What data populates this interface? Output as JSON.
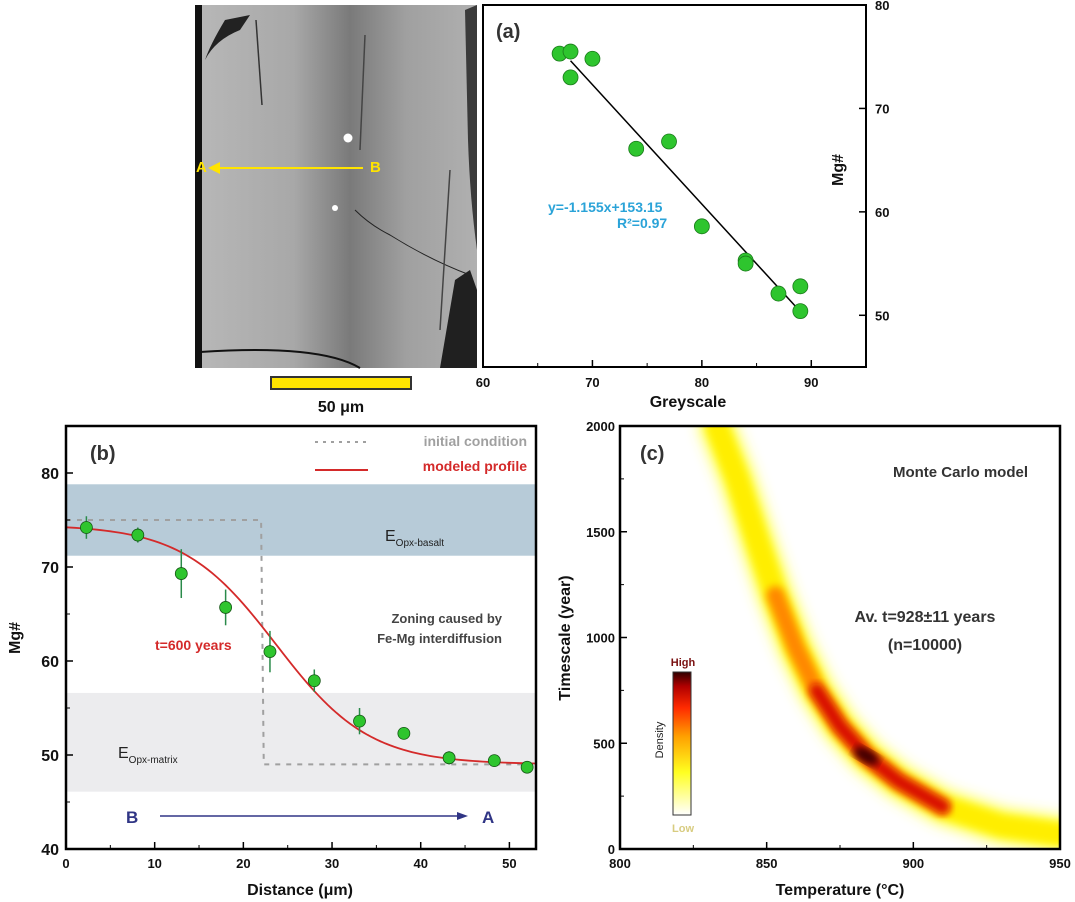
{
  "figure": {
    "bse_image": {
      "label_a": "A",
      "label_b": "B",
      "scale_bar_label": "50 μm",
      "arrow_color": "#ffe400"
    }
  },
  "chart_data": [
    {
      "id": "a",
      "type": "scatter",
      "panel_label": "(a)",
      "xlabel": "Greyscale",
      "ylabel": "Mg#",
      "xlim": [
        60,
        95
      ],
      "ylim": [
        45,
        80
      ],
      "x_ticks": [
        60,
        70,
        80,
        90
      ],
      "y_ticks": [
        50,
        60,
        70,
        80
      ],
      "y_axis_side": "right",
      "points": [
        {
          "x": 67,
          "y": 75.3
        },
        {
          "x": 68,
          "y": 75.5
        },
        {
          "x": 70,
          "y": 74.8
        },
        {
          "x": 68,
          "y": 73.0
        },
        {
          "x": 74,
          "y": 66.1
        },
        {
          "x": 77,
          "y": 66.8
        },
        {
          "x": 80,
          "y": 58.6
        },
        {
          "x": 84,
          "y": 55.3
        },
        {
          "x": 84,
          "y": 55.0
        },
        {
          "x": 87,
          "y": 52.1
        },
        {
          "x": 89,
          "y": 52.8
        },
        {
          "x": 89,
          "y": 50.4
        }
      ],
      "fit_line": {
        "x_range": [
          68,
          89
        ],
        "slope": -1.155,
        "intercept": 153.15
      },
      "fit_equation": "y=-1.155x+153.15",
      "fit_r2": "R²=0.97",
      "point_color": "#2ec52e",
      "equation_color": "#2aa3d8"
    },
    {
      "id": "b",
      "type": "line",
      "panel_label": "(b)",
      "xlabel": "Distance (μm)",
      "ylabel": "Mg#",
      "xlim": [
        0,
        53
      ],
      "ylim": [
        40,
        85
      ],
      "x_ticks": [
        0,
        10,
        20,
        30,
        40,
        50
      ],
      "y_ticks": [
        40,
        50,
        60,
        70,
        80
      ],
      "legend": [
        {
          "label": "initial condition",
          "style": "dashed",
          "color": "#a0a0a0"
        },
        {
          "label": "modeled profile",
          "style": "solid",
          "color": "#d42a2a"
        }
      ],
      "bands": [
        {
          "label_main": "E",
          "label_sub": "Opx-basalt",
          "y_range": [
            71.2,
            78.8
          ],
          "color": "#b7cbd8"
        },
        {
          "label_main": "E",
          "label_sub": "Opx-matrix",
          "y_range": [
            46.1,
            56.6
          ],
          "color": "#ececee"
        }
      ],
      "initial_condition": [
        [
          0,
          75
        ],
        [
          22,
          75
        ],
        [
          22.3,
          49
        ],
        [
          53,
          49
        ]
      ],
      "modeled_profile": {
        "plateau_high": 74.5,
        "plateau_low": 49,
        "center": 23.7,
        "width": 10.5
      },
      "points": [
        {
          "x": 2.3,
          "y": 74.2,
          "err": 1.2
        },
        {
          "x": 8.1,
          "y": 73.4,
          "err": 0.8
        },
        {
          "x": 13.0,
          "y": 69.3,
          "err": 2.6
        },
        {
          "x": 18.0,
          "y": 65.7,
          "err": 1.9
        },
        {
          "x": 23.0,
          "y": 61.0,
          "err": 2.2
        },
        {
          "x": 28.0,
          "y": 57.9,
          "err": 1.2
        },
        {
          "x": 33.1,
          "y": 53.6,
          "err": 1.4
        },
        {
          "x": 38.1,
          "y": 52.3,
          "err": 0.5
        },
        {
          "x": 43.2,
          "y": 49.7,
          "err": 0.7
        },
        {
          "x": 48.3,
          "y": 49.4,
          "err": 0.5
        },
        {
          "x": 52.0,
          "y": 48.7,
          "err": 0.4
        }
      ],
      "annotations": {
        "time_label": "t=600 years",
        "zoning_line1": "Zoning caused by",
        "zoning_line2": "Fe-Mg interdiffusion",
        "direction_start": "B",
        "direction_end": "A"
      },
      "point_color": "#2ec52e",
      "errorbar_color": "#2a8a4a"
    },
    {
      "id": "c",
      "type": "heatmap",
      "panel_label": "(c)",
      "xlabel": "Temperature (°C)",
      "ylabel": "Timescale (year)",
      "xlim": [
        800,
        950
      ],
      "ylim": [
        0,
        2000
      ],
      "x_ticks": [
        800,
        850,
        900,
        950
      ],
      "y_ticks": [
        0,
        500,
        1000,
        1500,
        2000
      ],
      "title": "Monte Carlo model",
      "result_line1": "Av. t=928±11 years",
      "result_line2": "(n=10000)",
      "density_ridge": [
        {
          "T": 833,
          "t": 2000
        },
        {
          "T": 840,
          "t": 1750
        },
        {
          "T": 847,
          "t": 1450
        },
        {
          "T": 853,
          "t": 1200
        },
        {
          "T": 860,
          "t": 950
        },
        {
          "T": 867,
          "t": 750
        },
        {
          "T": 875,
          "t": 580
        },
        {
          "T": 884,
          "t": 440
        },
        {
          "T": 895,
          "t": 320
        },
        {
          "T": 910,
          "t": 200
        },
        {
          "T": 930,
          "t": 110
        },
        {
          "T": 950,
          "t": 70
        }
      ],
      "density_peak": {
        "T": 884,
        "t": 440
      },
      "colorbar": {
        "label": "Density",
        "high": "High",
        "low": "Low",
        "colors": [
          "#ffffff",
          "#ffff20",
          "#ffa000",
          "#ff3000",
          "#c00000",
          "#300000"
        ]
      }
    }
  ]
}
